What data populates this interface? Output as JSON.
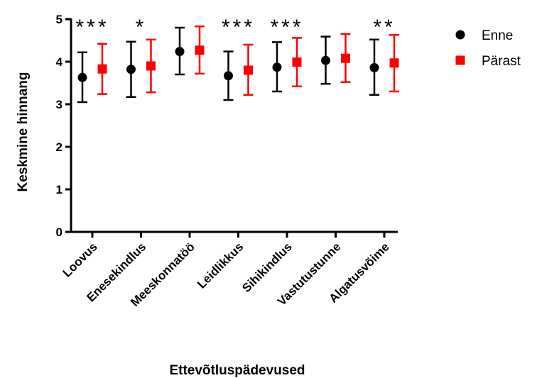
{
  "chart_data": {
    "type": "scatter",
    "title": "",
    "xlabel": "Ettevõtluspädevused",
    "ylabel": "Keskmine hinnang",
    "ylim": [
      0,
      5
    ],
    "yticks": [
      "0",
      "1",
      "2",
      "3",
      "4",
      "5"
    ],
    "grid": false,
    "legend_position": "top-right",
    "categories": [
      "Loovus",
      "Enesekindlus",
      "Meeskonnatöö",
      "Leidlikkus",
      "Sihikindlus",
      "Vastutustunne",
      "Algatusvõime"
    ],
    "significance": [
      "***",
      "*",
      "",
      "***",
      "***",
      "",
      "**"
    ],
    "series": [
      {
        "name": "Enne",
        "color": "#000000",
        "marker": "circle",
        "values": [
          3.63,
          3.82,
          4.24,
          3.67,
          3.87,
          4.03,
          3.86
        ],
        "error_low": [
          3.05,
          3.17,
          3.7,
          3.1,
          3.3,
          3.48,
          3.22
        ],
        "error_high": [
          4.22,
          4.47,
          4.8,
          4.24,
          4.46,
          4.59,
          4.52
        ]
      },
      {
        "name": "Pärast",
        "color": "#ff0000",
        "marker": "square",
        "values": [
          3.83,
          3.9,
          4.27,
          3.8,
          3.99,
          4.08,
          3.97
        ],
        "error_low": [
          3.24,
          3.28,
          3.72,
          3.22,
          3.42,
          3.52,
          3.3
        ],
        "error_high": [
          4.42,
          4.52,
          4.83,
          4.4,
          4.56,
          4.65,
          4.63
        ]
      }
    ]
  }
}
